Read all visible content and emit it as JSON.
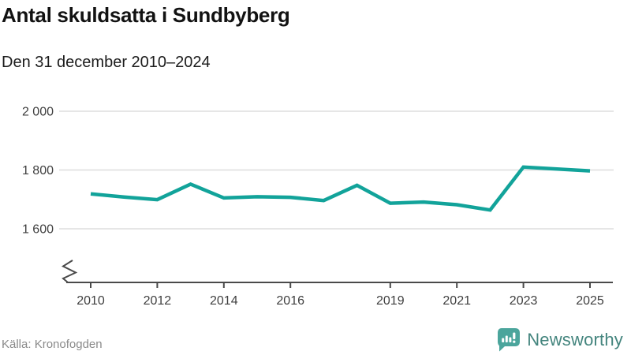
{
  "header": {
    "title": "Antal skuldsatta i Sundbyberg",
    "subtitle": "Den 31 december 2010–2024"
  },
  "chart_data": {
    "type": "line",
    "title": "Antal skuldsatta i Sundbyberg",
    "subtitle": "Den 31 december 2010–2024",
    "series": [
      {
        "name": "Antal skuldsatta i Sundbyberg",
        "x": [
          2010,
          2011,
          2012,
          2013,
          2014,
          2015,
          2016,
          2017,
          2018,
          2019,
          2020,
          2021,
          2022,
          2023,
          2024
        ],
        "values": [
          1719,
          1708,
          1699,
          1752,
          1705,
          1709,
          1707,
          1696,
          1748,
          1687,
          1691,
          1682,
          1664,
          1810,
          1797
        ]
      }
    ],
    "ylim": [
      1545,
      2040
    ],
    "yticks": [
      {
        "value": 2000,
        "label": "2 000"
      },
      {
        "value": 1800,
        "label": "1 800"
      },
      {
        "value": 1600,
        "label": "1 600"
      }
    ],
    "xticks": [
      {
        "value": 2010,
        "label": "2010"
      },
      {
        "value": 2012,
        "label": "2012"
      },
      {
        "value": 2014,
        "label": "2014"
      },
      {
        "value": 2016,
        "label": "2016"
      },
      {
        "value": 2019,
        "label": "2019"
      },
      {
        "value": 2021,
        "label": "2021"
      },
      {
        "value": 2023,
        "label": "2023"
      },
      {
        "value": 2025,
        "label": "2025"
      }
    ],
    "grid": "horizontal-only",
    "legend": "none",
    "y_axis_break": true,
    "line_color": "#12a39a"
  },
  "footer": {
    "source": "Källa: Kronofogden",
    "brand": "Newsworthy"
  },
  "icons": {
    "brand_icon": "newsworthy-speech-bubble-bar-chart-icon",
    "axis_break_icon": "axis-break-zigzag-icon"
  },
  "colors": {
    "background": "#ffffff",
    "line": "#12a39a",
    "grid": "#dddddd",
    "axis": "#4a4a4a",
    "tick_label": "#3f3f3f",
    "title": "#121212",
    "subtitle": "#1c1c1c",
    "source_text": "#8a8a8a",
    "brand_text": "#44857e",
    "brand_icon_fill": "#4ba59c"
  }
}
